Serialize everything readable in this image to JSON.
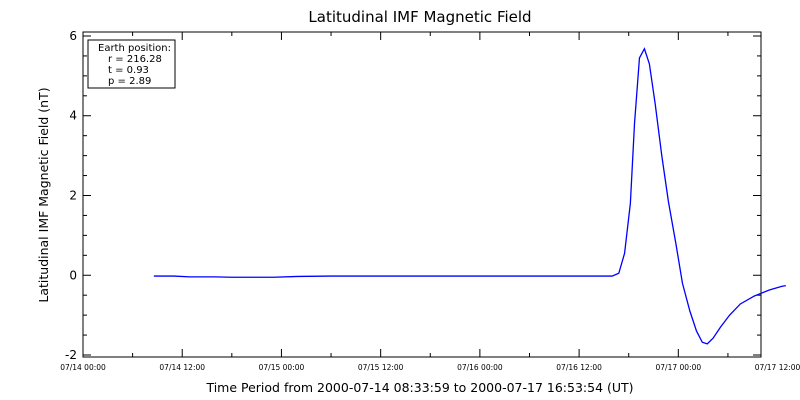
{
  "chart_data": {
    "type": "line",
    "title": "Latitudinal IMF Magnetic Field",
    "xlabel": "Time Period from 2000-07-14 08:33:59 to 2000-07-17 16:53:54 (UT)",
    "ylabel": "Latitudinal IMF Magnetic Field (nT)",
    "ylim": [
      -2.05,
      6.1
    ],
    "xlim": [
      0,
      82
    ],
    "x_unit": "hours since 07/14 00:00",
    "yticks": [
      -2,
      0,
      2,
      4,
      6
    ],
    "xticks": [
      {
        "x": 0,
        "label": "07/14 00:00"
      },
      {
        "x": 12,
        "label": "07/14 12:00"
      },
      {
        "x": 24,
        "label": "07/15 00:00"
      },
      {
        "x": 36,
        "label": "07/15 12:00"
      },
      {
        "x": 48,
        "label": "07/16 00:00"
      },
      {
        "x": 60,
        "label": "07/16 12:00"
      },
      {
        "x": 72,
        "label": "07/17 00:00"
      },
      {
        "x": 84,
        "label": "07/17 12:00"
      }
    ],
    "grid": false,
    "series": [
      {
        "color": "#0000ff",
        "points": [
          [
            8.57,
            -0.02
          ],
          [
            11.0,
            -0.02
          ],
          [
            12.9,
            -0.04
          ],
          [
            16.0,
            -0.04
          ],
          [
            18.0,
            -0.05
          ],
          [
            23.0,
            -0.05
          ],
          [
            26.0,
            -0.03
          ],
          [
            30.0,
            -0.02
          ],
          [
            40.0,
            -0.02
          ],
          [
            50.0,
            -0.02
          ],
          [
            60.0,
            -0.02
          ],
          [
            64.0,
            -0.02
          ],
          [
            64.8,
            0.05
          ],
          [
            65.5,
            0.55
          ],
          [
            66.2,
            1.8
          ],
          [
            66.7,
            3.8
          ],
          [
            67.3,
            5.45
          ],
          [
            67.9,
            5.68
          ],
          [
            68.5,
            5.3
          ],
          [
            69.2,
            4.3
          ],
          [
            70.0,
            3.0
          ],
          [
            70.8,
            1.85
          ],
          [
            71.7,
            0.8
          ],
          [
            72.5,
            -0.2
          ],
          [
            73.4,
            -0.9
          ],
          [
            74.2,
            -1.4
          ],
          [
            74.9,
            -1.68
          ],
          [
            75.5,
            -1.72
          ],
          [
            76.2,
            -1.58
          ],
          [
            77.1,
            -1.3
          ],
          [
            78.2,
            -1.0
          ],
          [
            79.5,
            -0.72
          ],
          [
            81.2,
            -0.52
          ],
          [
            83.0,
            -0.37
          ],
          [
            84.5,
            -0.28
          ],
          [
            85.0,
            -0.26
          ]
        ]
      }
    ]
  },
  "legend": {
    "title": "Earth position:",
    "r": "r = 216.28",
    "t": "t = 0.93",
    "p": "p = 2.89"
  }
}
